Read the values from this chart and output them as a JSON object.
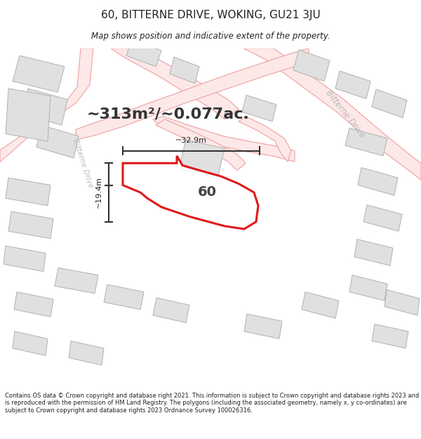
{
  "title": "60, BITTERNE DRIVE, WOKING, GU21 3JU",
  "subtitle": "Map shows position and indicative extent of the property.",
  "area_text": "~313m²/~0.077ac.",
  "width_label": "~32.9m",
  "height_label": "~19.4m",
  "number_label": "60",
  "footer_text": "Contains OS data © Crown copyright and database right 2021. This information is subject to Crown copyright and database rights 2023 and is reproduced with the permission of HM Land Registry. The polygons (including the associated geometry, namely x, y co-ordinates) are subject to Crown copyright and database rights 2023 Ordnance Survey 100026316.",
  "bg_color": "#ffffff",
  "map_bg": "#ffffff",
  "road_line_color": "#f0a0a0",
  "road_fill_color": "#fde8e8",
  "building_color": "#e0e0e0",
  "building_border": "#b0b0b0",
  "highlight_color": "#dd0000",
  "road_label_color": "#bbbbbb",
  "title_color": "#222222",
  "footer_color": "#222222",
  "footer_bg": "#f0f0f0",
  "street_name": "Bitterne Drive"
}
